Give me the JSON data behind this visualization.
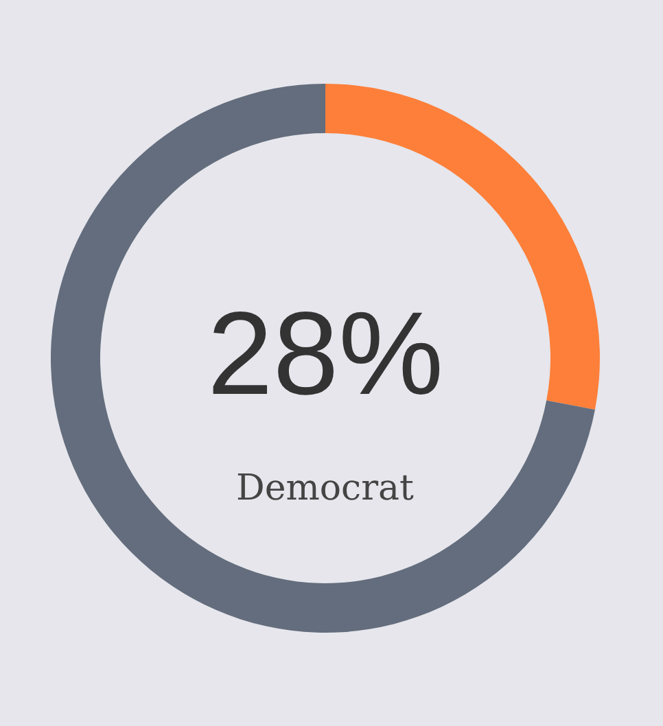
{
  "chart_data": {
    "type": "donut",
    "title": "Democrat",
    "categories": [
      null,
      null
    ],
    "values": [
      28,
      72
    ],
    "colors": [
      "#fd7f39",
      "#636d7d"
    ],
    "value_labels": [
      "28%",
      null
    ],
    "legend": false
  }
}
